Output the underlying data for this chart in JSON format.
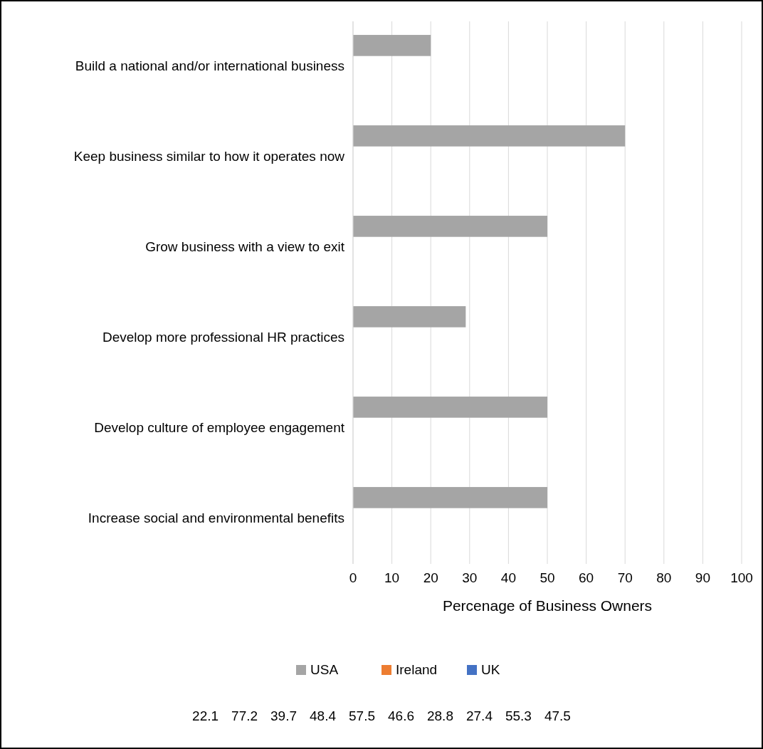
{
  "chart_data": {
    "type": "bar",
    "orientation": "horizontal",
    "categories": [
      "Build a national and/or international business",
      "Keep business similar to how it operates now",
      "Grow business with a view to exit",
      "Develop more professional HR practices",
      "Develop culture of employee engagement",
      "Increase social and environmental benefits"
    ],
    "series": [
      {
        "name": "USA",
        "color": "#a5a5a5",
        "values": [
          20,
          70,
          50,
          29,
          50,
          50
        ]
      },
      {
        "name": "Ireland",
        "color": "#ed7d31",
        "values": [
          null,
          null,
          null,
          null,
          null,
          null
        ]
      },
      {
        "name": "UK",
        "color": "#4472c4",
        "values": [
          null,
          null,
          null,
          null,
          null,
          null
        ]
      }
    ],
    "xlim": [
      0,
      100
    ],
    "xticks": [
      0,
      10,
      20,
      30,
      40,
      50,
      60,
      70,
      80,
      90,
      100
    ],
    "xlabel": "Percenage of Business Owners",
    "grid": "x",
    "legend": "bottom",
    "annotations": [
      "22.1",
      "77.2",
      "39.7",
      "48.4",
      "57.5",
      "46.6",
      "28.8",
      "27.4",
      "55.3",
      "47.5"
    ]
  }
}
